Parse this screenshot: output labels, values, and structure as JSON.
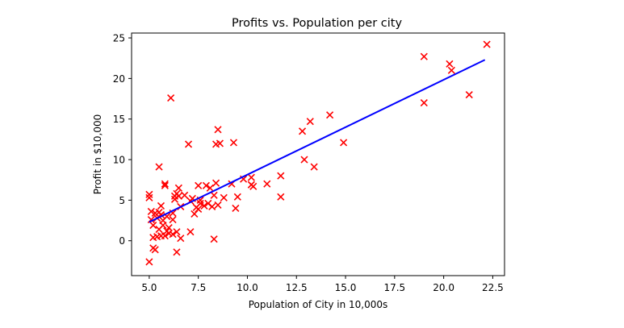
{
  "chart_data": {
    "type": "scatter",
    "title": "Profits vs. Population per city",
    "xlabel": "Population of City in 10,000s",
    "ylabel": "Profit in $10,000",
    "xlim": [
      4.1,
      23.1
    ],
    "ylim": [
      -4.3,
      25.6
    ],
    "xticks": [
      5.0,
      7.5,
      10.0,
      12.5,
      15.0,
      17.5,
      20.0,
      22.5
    ],
    "xtick_labels": [
      "5.0",
      "7.5",
      "10.0",
      "12.5",
      "15.0",
      "17.5",
      "20.0",
      "22.5"
    ],
    "yticks": [
      0,
      5,
      10,
      15,
      20,
      25
    ],
    "ytick_labels": [
      "0",
      "5",
      "10",
      "15",
      "20",
      "25"
    ],
    "grid": false,
    "marker_color": "#ff0000",
    "line_color": "#0000ff",
    "points": [
      [
        5.0,
        5.7
      ],
      [
        5.0,
        5.3
      ],
      [
        5.0,
        -2.6
      ],
      [
        5.1,
        3.6
      ],
      [
        5.1,
        2.6
      ],
      [
        5.2,
        0.4
      ],
      [
        5.2,
        1.9
      ],
      [
        5.2,
        -0.9
      ],
      [
        5.3,
        -1.1
      ],
      [
        5.3,
        3.4
      ],
      [
        5.4,
        2.8
      ],
      [
        5.4,
        0.5
      ],
      [
        5.5,
        3.5
      ],
      [
        5.5,
        1.4
      ],
      [
        5.5,
        9.1
      ],
      [
        5.6,
        4.3
      ],
      [
        5.6,
        0.6
      ],
      [
        5.6,
        3.2
      ],
      [
        5.7,
        1.9
      ],
      [
        5.7,
        2.5
      ],
      [
        5.8,
        0.6
      ],
      [
        5.8,
        6.8
      ],
      [
        5.8,
        7.0
      ],
      [
        5.9,
        3.0
      ],
      [
        5.9,
        1.2
      ],
      [
        6.0,
        1.6
      ],
      [
        6.0,
        0.9
      ],
      [
        6.1,
        17.6
      ],
      [
        6.2,
        2.6
      ],
      [
        6.2,
        3.4
      ],
      [
        6.2,
        0.8
      ],
      [
        6.3,
        5.1
      ],
      [
        6.3,
        5.5
      ],
      [
        6.4,
        -1.4
      ],
      [
        6.4,
        1.1
      ],
      [
        6.4,
        5.8
      ],
      [
        6.5,
        6.5
      ],
      [
        6.5,
        5.5
      ],
      [
        6.6,
        0.3
      ],
      [
        6.6,
        4.2
      ],
      [
        6.8,
        5.6
      ],
      [
        7.0,
        11.9
      ],
      [
        7.1,
        4.9
      ],
      [
        7.1,
        1.1
      ],
      [
        7.2,
        5.2
      ],
      [
        7.3,
        3.3
      ],
      [
        7.4,
        4.1
      ],
      [
        7.5,
        3.9
      ],
      [
        7.5,
        6.8
      ],
      [
        7.6,
        4.6
      ],
      [
        7.6,
        5.0
      ],
      [
        7.8,
        4.3
      ],
      [
        7.9,
        6.8
      ],
      [
        8.0,
        4.6
      ],
      [
        8.1,
        6.5
      ],
      [
        8.2,
        4.2
      ],
      [
        8.3,
        5.6
      ],
      [
        8.3,
        0.2
      ],
      [
        8.4,
        7.1
      ],
      [
        8.4,
        11.9
      ],
      [
        8.5,
        4.4
      ],
      [
        8.5,
        13.7
      ],
      [
        8.6,
        12.0
      ],
      [
        8.8,
        5.3
      ],
      [
        9.2,
        7.0
      ],
      [
        9.3,
        12.1
      ],
      [
        9.4,
        4.0
      ],
      [
        9.5,
        5.4
      ],
      [
        9.8,
        7.6
      ],
      [
        10.2,
        7.8
      ],
      [
        10.2,
        6.9
      ],
      [
        10.3,
        6.7
      ],
      [
        11.0,
        7.0
      ],
      [
        11.7,
        8.0
      ],
      [
        11.7,
        5.4
      ],
      [
        12.8,
        13.5
      ],
      [
        12.9,
        10.0
      ],
      [
        13.2,
        14.7
      ],
      [
        13.4,
        9.1
      ],
      [
        14.2,
        15.5
      ],
      [
        14.9,
        12.1
      ],
      [
        19.0,
        22.7
      ],
      [
        19.0,
        17.0
      ],
      [
        20.3,
        21.8
      ],
      [
        20.4,
        21.0
      ],
      [
        21.3,
        18.0
      ],
      [
        22.2,
        24.2
      ]
    ],
    "fit_line": {
      "x": [
        5.0,
        22.1
      ],
      "y": [
        2.3,
        22.3
      ]
    }
  }
}
